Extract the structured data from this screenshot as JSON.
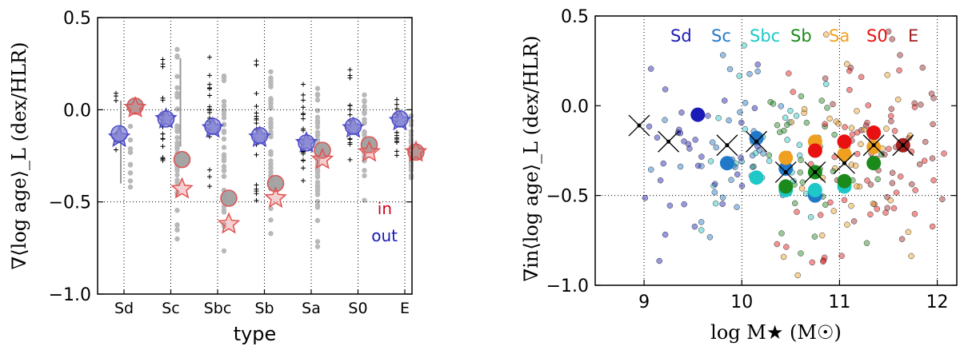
{
  "chart_data": [
    {
      "type": "scatter",
      "panel": "left",
      "xlabel": "type",
      "ylabel": "∇⟨log age⟩_L (dex/HLR)",
      "ylim": [
        -1.0,
        0.5
      ],
      "yticks": [
        "0.5",
        "0.0",
        "−0.5",
        "−1.0"
      ],
      "categories": [
        "Sd",
        "Sc",
        "Sbc",
        "Sb",
        "Sa",
        "S0",
        "E"
      ],
      "grid": "dotted",
      "legend": {
        "placement": "lower-right",
        "entries": [
          {
            "label": "in",
            "color": "#d0021b"
          },
          {
            "label": "out",
            "color": "#1a1ab0"
          }
        ]
      },
      "series": [
        {
          "name": "in",
          "marker": "circle",
          "color": "#e05050",
          "values": [
            0.02,
            -0.27,
            -0.48,
            -0.4,
            -0.22,
            -0.19,
            -0.23
          ]
        },
        {
          "name": "out",
          "marker": "star",
          "color": "#4a4ac8",
          "values": [
            -0.15,
            -0.05,
            -0.1,
            -0.15,
            -0.18,
            -0.1,
            -0.06
          ]
        },
        {
          "marker": "star",
          "color": "#e05050",
          "values": [
            0.01,
            -0.43,
            -0.62,
            -0.48,
            -0.27,
            -0.23,
            -0.23
          ]
        },
        {
          "marker": "circle",
          "color": "#4a4ac8",
          "values": [
            -0.13,
            -0.05,
            -0.09,
            -0.14,
            -0.18,
            -0.09,
            -0.05
          ]
        }
      ]
    },
    {
      "type": "scatter",
      "panel": "right",
      "xlabel": "log M★ (M☉)",
      "ylabel": "∇in⟨log age⟩_L (dex/HLR)",
      "xlim": [
        8.5,
        12.2
      ],
      "ylim": [
        -1.0,
        0.5
      ],
      "xticks": [
        "9",
        "10",
        "11",
        "12"
      ],
      "yticks": [
        "0.5",
        "0.0",
        "−0.5",
        "−1.0"
      ],
      "legend": {
        "placement": "top",
        "entries": [
          {
            "label": "Sd",
            "color": "#1a1ab8"
          },
          {
            "label": "Sc",
            "color": "#1f78c8"
          },
          {
            "label": "Sbc",
            "color": "#1ec8c8"
          },
          {
            "label": "Sb",
            "color": "#1a8a1a"
          },
          {
            "label": "Sa",
            "color": "#f0a020"
          },
          {
            "label": "S0",
            "color": "#e81010"
          },
          {
            "label": "E",
            "color": "#a02020"
          }
        ]
      },
      "series": [
        {
          "name": "Sd",
          "color": "#1a1ab8",
          "points": [
            [
              9.55,
              -0.05
            ]
          ]
        },
        {
          "name": "Sc",
          "color": "#1f78c8",
          "points": [
            [
              9.85,
              -0.32
            ],
            [
              10.15,
              -0.18
            ],
            [
              10.45,
              -0.35
            ],
            [
              10.75,
              -0.5
            ]
          ]
        },
        {
          "name": "Sbc",
          "color": "#1ec8c8",
          "points": [
            [
              10.15,
              -0.4
            ],
            [
              10.45,
              -0.47
            ],
            [
              10.75,
              -0.47
            ],
            [
              11.05,
              -0.45
            ]
          ]
        },
        {
          "name": "Sb",
          "color": "#1a8a1a",
          "points": [
            [
              10.45,
              -0.45
            ],
            [
              10.75,
              -0.37
            ],
            [
              11.05,
              -0.42
            ],
            [
              11.35,
              -0.32
            ]
          ]
        },
        {
          "name": "Sa",
          "color": "#f0a020",
          "points": [
            [
              10.45,
              -0.29
            ],
            [
              10.75,
              -0.2
            ],
            [
              11.05,
              -0.27
            ],
            [
              11.35,
              -0.23
            ]
          ]
        },
        {
          "name": "S0",
          "color": "#e81010",
          "points": [
            [
              10.75,
              -0.25
            ],
            [
              11.05,
              -0.2
            ],
            [
              11.35,
              -0.15
            ]
          ]
        },
        {
          "name": "E",
          "color": "#a02020",
          "points": [
            [
              11.65,
              -0.22
            ]
          ]
        },
        {
          "marker": "x",
          "color": "#000000",
          "points": [
            [
              8.95,
              -0.11
            ],
            [
              9.25,
              -0.2
            ],
            [
              9.85,
              -0.22
            ],
            [
              10.15,
              -0.2
            ],
            [
              10.45,
              -0.37
            ],
            [
              10.75,
              -0.37
            ],
            [
              11.05,
              -0.32
            ],
            [
              11.35,
              -0.22
            ],
            [
              11.65,
              -0.22
            ]
          ]
        }
      ]
    }
  ]
}
